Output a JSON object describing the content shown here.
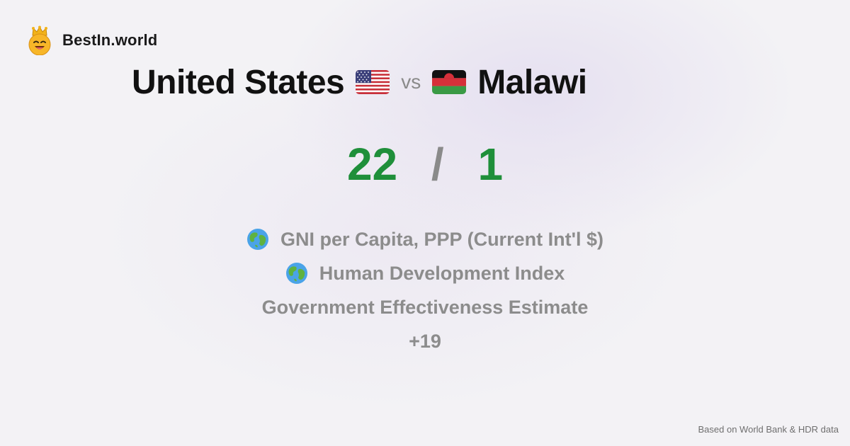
{
  "brand": {
    "name": "BestIn.world",
    "logo_icon": "crowned-smiley-icon"
  },
  "comparison": {
    "country_a": "United States",
    "country_b": "Malawi",
    "vs_label": "vs",
    "flag_a_icon": "us-flag-icon",
    "flag_b_icon": "malawi-flag-icon"
  },
  "score": {
    "a": "22",
    "separator": "/",
    "b": "1",
    "color": "#1f8f3a"
  },
  "metrics": [
    {
      "label": "GNI per Capita, PPP (Current Int'l $)",
      "icon": "globe-icon"
    },
    {
      "label": "Human Development Index",
      "icon": "globe-icon"
    },
    {
      "label": "Government Effectiveness Estimate",
      "icon": ""
    }
  ],
  "more_count": "+19",
  "footer": {
    "source": "Based on World Bank & HDR data"
  }
}
